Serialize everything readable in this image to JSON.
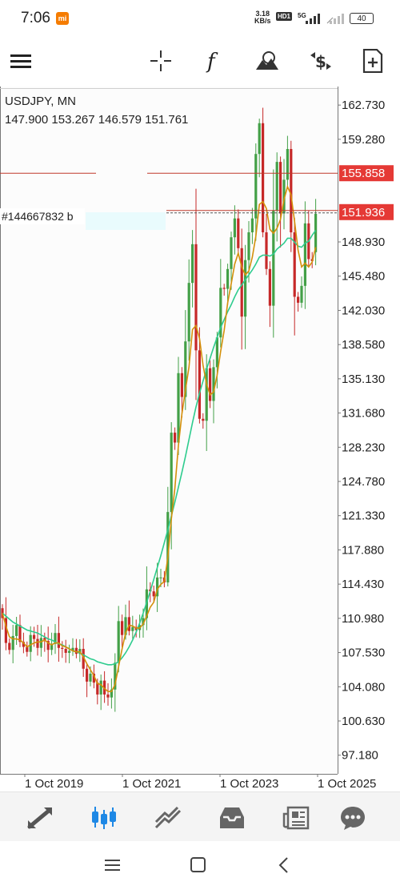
{
  "status_bar": {
    "time": "7:06",
    "mi_badge": "mi",
    "net_speed_value": "3.18",
    "net_speed_unit": "KB/s",
    "hd_label": "HD1",
    "network_type": "5G",
    "battery": "40"
  },
  "toolbar": {
    "icons": [
      "crosshair-icon",
      "function-icon",
      "objects-icon",
      "trade-icon",
      "add-chart-icon"
    ]
  },
  "chart": {
    "symbol_timeframe": "USDJPY, MN",
    "ohlc": "147.900 153.267 146.579 151.761",
    "order_label": "#144667832 b",
    "price_labels": [
      "162.730",
      "159.280",
      "155.858",
      "151.936",
      "148.930",
      "145.480",
      "142.030",
      "138.580",
      "135.130",
      "131.680",
      "128.230",
      "124.780",
      "121.330",
      "117.880",
      "114.430",
      "110.980",
      "107.530",
      "104.080",
      "100.630",
      "97.180"
    ],
    "time_labels": [
      "1 Oct 2019",
      "1 Oct 2021",
      "1 Oct 2023",
      "1 Oct 2025"
    ],
    "level_price": "155.858",
    "current_price": "151.936",
    "colors": {
      "bull": "#43a047",
      "bear": "#c62828",
      "ma_fast": "#d4900b",
      "ma_slow": "#2ecc8e",
      "level_line": "#c0392b",
      "price_tag": "#e53935"
    }
  },
  "chart_data": {
    "type": "candlestick",
    "title": "USDJPY, MN",
    "xlabel": "",
    "ylabel": "",
    "ylim": [
      95.3,
      164.6
    ],
    "x_ticks": [
      "1 Oct 2019",
      "1 Oct 2021",
      "1 Oct 2023",
      "1 Oct 2025"
    ],
    "y_ticks": [
      162.73,
      159.28,
      155.858,
      151.936,
      148.93,
      145.48,
      142.03,
      138.58,
      135.13,
      131.68,
      128.23,
      124.78,
      121.33,
      117.88,
      114.43,
      110.98,
      107.53,
      104.08,
      100.63,
      97.18
    ],
    "last_ohlc": {
      "open": 147.9,
      "high": 153.267,
      "low": 146.579,
      "close": 151.761
    },
    "horizontal_levels": [
      155.858,
      151.936
    ],
    "close_series": [
      111.0,
      108.5,
      107.8,
      109.2,
      110.3,
      108.6,
      108.1,
      107.6,
      109.3,
      108.9,
      108.0,
      109.0,
      108.7,
      107.8,
      108.4,
      109.5,
      108.0,
      107.9,
      107.5,
      107.7,
      108.0,
      107.4,
      107.9,
      105.9,
      104.6,
      105.4,
      104.5,
      103.3,
      104.7,
      103.3,
      103.0,
      103.8,
      106.5,
      110.7,
      109.3,
      111.1,
      109.7,
      110.1,
      109.8,
      110.3,
      111.0,
      113.9,
      113.7,
      113.2,
      115.1,
      115.1,
      114.6,
      121.7,
      129.7,
      128.7,
      135.7,
      133.3,
      138.9,
      144.8,
      148.7,
      138.0,
      131.1,
      130.9,
      136.2,
      132.9,
      136.3,
      139.3,
      144.3,
      144.2,
      146.2,
      149.4,
      151.3,
      148.3,
      141.4,
      147.1,
      149.9,
      151.3,
      157.8,
      160.9,
      149.9,
      146.2,
      142.5,
      152.1,
      157.0,
      151.8,
      155.2,
      158.3,
      149.9,
      143.4,
      142.8,
      144.5,
      150.8,
      147.2,
      147.0,
      151.8
    ],
    "ma_fast": [
      111.5,
      110.2,
      109.1,
      108.9,
      108.9,
      108.8,
      108.5,
      108.1,
      108.3,
      108.5,
      108.6,
      108.6,
      108.8,
      108.5,
      108.3,
      108.5,
      108.5,
      108.2,
      108.1,
      107.9,
      107.7,
      107.6,
      107.6,
      107.1,
      106.4,
      105.8,
      105.2,
      104.4,
      104.3,
      103.9,
      103.6,
      103.6,
      104.3,
      106.1,
      107.9,
      109.5,
      110.3,
      110.2,
      110.0,
      110.0,
      110.4,
      111.2,
      112.1,
      112.6,
      113.9,
      114.4,
      114.7,
      117.1,
      121.0,
      124.1,
      128.4,
      131.6,
      134.0,
      136.3,
      140.1,
      140.5,
      139.2,
      136.5,
      134.6,
      133.5,
      133.8,
      135.5,
      137.9,
      140.0,
      142.8,
      144.7,
      146.7,
      147.8,
      146.4,
      145.6,
      146.0,
      147.4,
      149.5,
      152.7,
      153.0,
      152.3,
      150.2,
      149.8,
      150.3,
      151.2,
      153.2,
      154.5,
      153.7,
      151.0,
      148.1,
      146.4,
      146.8,
      146.4,
      146.9,
      148.4
    ],
    "ma_slow": [
      111.5,
      111.2,
      110.9,
      110.6,
      110.4,
      110.2,
      110.0,
      109.8,
      109.7,
      109.6,
      109.5,
      109.3,
      109.1,
      108.9,
      108.8,
      108.6,
      108.4,
      108.3,
      108.1,
      107.9,
      107.7,
      107.6,
      107.5,
      107.3,
      107.1,
      106.9,
      106.8,
      106.6,
      106.5,
      106.4,
      106.3,
      106.3,
      106.4,
      106.6,
      107.0,
      107.5,
      108.1,
      108.8,
      109.6,
      110.5,
      111.5,
      112.6,
      113.7,
      114.9,
      116.1,
      117.3,
      118.6,
      119.9,
      121.3,
      122.7,
      124.2,
      125.7,
      127.3,
      129.0,
      130.7,
      132.3,
      133.7,
      134.9,
      136.1,
      137.2,
      138.3,
      139.3,
      140.3,
      141.1,
      141.9,
      142.6,
      143.4,
      144.1,
      144.6,
      145.1,
      145.6,
      146.1,
      146.7,
      147.4,
      147.6,
      147.6,
      147.5,
      147.7,
      148.2,
      148.5,
      148.8,
      149.3,
      149.3,
      148.9,
      148.5,
      148.4,
      148.8,
      149.0,
      149.6,
      150.1
    ]
  },
  "bottom_nav": {
    "items": [
      "quotes-icon",
      "chart-icon",
      "trade-icon",
      "history-icon",
      "news-icon",
      "messages-icon"
    ],
    "active": "chart-icon"
  }
}
